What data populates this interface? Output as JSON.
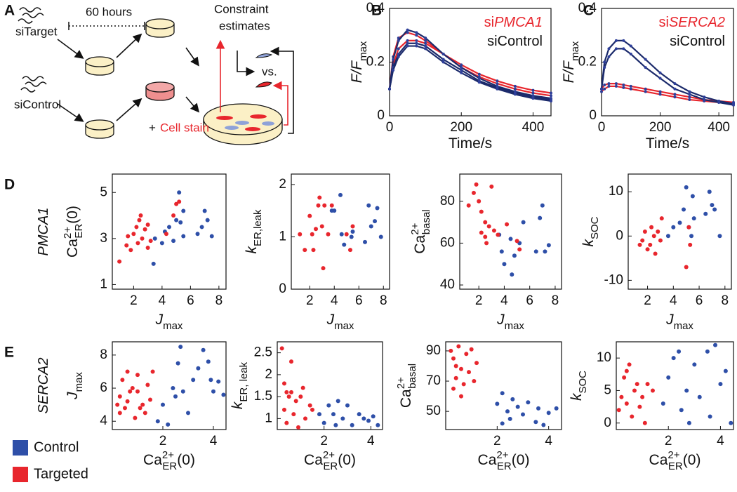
{
  "diagram": {
    "panel": "A",
    "target": "siTarget",
    "duration": "60 hours",
    "control": "siControl",
    "plus": "+",
    "stain": "Cell stain",
    "estimates": [
      "Constraint",
      "estimates"
    ],
    "versus": "vs."
  },
  "legend": [
    {
      "name": "Control",
      "color": "#2e4fa8"
    },
    {
      "name": "Targeted",
      "color": "#e8262d"
    }
  ],
  "chart_data": [
    {
      "type": "line",
      "panel": "B",
      "legend": [
        {
          "prefix": "si",
          "name": "PMCA1",
          "color": "#e8262d"
        },
        {
          "name": "siControl",
          "color": "#111111"
        }
      ],
      "xlabel": {
        "text": "Time/s"
      },
      "ylabel": {
        "text": "F/F",
        "sub": "max",
        "italic": true
      },
      "xlim": [
        0,
        450
      ],
      "xticks": [
        0,
        200,
        400
      ],
      "ylim": [
        0,
        0.4
      ],
      "yticks": [
        0,
        0.2,
        0.4
      ],
      "x": [
        0,
        10,
        25,
        50,
        75,
        100,
        150,
        200,
        250,
        300,
        350,
        400,
        450
      ],
      "series": [
        {
          "color": "#e8262d",
          "values": [
            0.1,
            0.22,
            0.29,
            0.31,
            0.3,
            0.28,
            0.23,
            0.18,
            0.145,
            0.12,
            0.1,
            0.085,
            0.075
          ]
        },
        {
          "color": "#e8262d",
          "values": [
            0.1,
            0.19,
            0.25,
            0.28,
            0.28,
            0.27,
            0.23,
            0.19,
            0.155,
            0.13,
            0.11,
            0.095,
            0.085
          ]
        },
        {
          "color": "#1b2a6b",
          "values": [
            0.1,
            0.21,
            0.28,
            0.32,
            0.31,
            0.29,
            0.23,
            0.18,
            0.14,
            0.11,
            0.09,
            0.075,
            0.065
          ]
        },
        {
          "color": "#1b2a6b",
          "values": [
            0.1,
            0.18,
            0.23,
            0.27,
            0.27,
            0.26,
            0.21,
            0.17,
            0.13,
            0.105,
            0.085,
            0.07,
            0.06
          ]
        },
        {
          "color": "#1b2a6b",
          "values": [
            0.1,
            0.17,
            0.22,
            0.26,
            0.26,
            0.25,
            0.2,
            0.16,
            0.125,
            0.1,
            0.08,
            0.065,
            0.055
          ]
        }
      ]
    },
    {
      "type": "line",
      "panel": "C",
      "legend": [
        {
          "prefix": "si",
          "name": "SERCA2",
          "color": "#e8262d"
        },
        {
          "name": "siControl",
          "color": "#111111"
        }
      ],
      "xlabel": {
        "text": "Time/s"
      },
      "ylabel": {
        "text": "F/F",
        "sub": "max",
        "italic": true
      },
      "xlim": [
        0,
        450
      ],
      "xticks": [
        0,
        200,
        400
      ],
      "ylim": [
        0,
        0.4
      ],
      "yticks": [
        0,
        0.2,
        0.4
      ],
      "x": [
        0,
        10,
        25,
        50,
        75,
        100,
        150,
        200,
        250,
        300,
        350,
        400,
        450
      ],
      "series": [
        {
          "color": "#e8262d",
          "values": [
            0.1,
            0.115,
            0.12,
            0.12,
            0.115,
            0.11,
            0.1,
            0.09,
            0.08,
            0.07,
            0.06,
            0.055,
            0.05
          ]
        },
        {
          "color": "#e8262d",
          "values": [
            0.09,
            0.1,
            0.11,
            0.11,
            0.105,
            0.1,
            0.09,
            0.08,
            0.07,
            0.06,
            0.055,
            0.05,
            0.045
          ]
        },
        {
          "color": "#1b2a6b",
          "values": [
            0.1,
            0.2,
            0.25,
            0.28,
            0.28,
            0.26,
            0.21,
            0.16,
            0.12,
            0.09,
            0.07,
            0.055,
            0.045
          ]
        },
        {
          "color": "#1b2a6b",
          "values": [
            0.1,
            0.18,
            0.22,
            0.25,
            0.25,
            0.23,
            0.18,
            0.14,
            0.1,
            0.08,
            0.06,
            0.05,
            0.04
          ]
        }
      ]
    },
    {
      "type": "scatter",
      "panel": "D",
      "row_label": "PMCA1",
      "xlabel": {
        "text": "J",
        "sub": "max",
        "italic": true
      },
      "ylabel": {
        "text": "Ca",
        "sup": "2+",
        "sub": "ER",
        "after": "(0)"
      },
      "xlim": [
        0.5,
        8.5
      ],
      "xticks": [
        2,
        4,
        6,
        8
      ],
      "ylim": [
        0.8,
        5.8
      ],
      "yticks": [
        1,
        3,
        5
      ],
      "series": [
        {
          "color": "#2e4fa8",
          "x": [
            3.4,
            3.5,
            4,
            4.2,
            4.5,
            4.8,
            5,
            5.2,
            5.5,
            5.5,
            6.5,
            6.8,
            7,
            7.2,
            7.5,
            5.3
          ],
          "values": [
            1.9,
            3,
            2.8,
            3.3,
            3.5,
            2.9,
            3.8,
            5,
            4.2,
            3.1,
            3.2,
            3.5,
            4.2,
            3.8,
            3.1,
            3.7
          ]
        },
        {
          "color": "#e8262d",
          "x": [
            1,
            1.5,
            1.6,
            1.8,
            2,
            2.2,
            2.3,
            2.4,
            2.5,
            2.6,
            2.8,
            3,
            3,
            3.2,
            4.3,
            4.8,
            5,
            5.2
          ],
          "values": [
            2,
            2.7,
            3.1,
            2.5,
            3.2,
            3.5,
            2.8,
            3.8,
            4,
            3,
            3.4,
            2.6,
            3.6,
            2.9,
            3.2,
            4,
            4.5,
            4.6
          ]
        }
      ]
    },
    {
      "type": "scatter",
      "xlabel": {
        "text": "J",
        "sub": "max",
        "italic": true
      },
      "ylabel": {
        "text": "k",
        "sub": "ER,leak",
        "italic": true
      },
      "xlim": [
        0.5,
        8.5
      ],
      "xticks": [
        2,
        4,
        6,
        8
      ],
      "ylim": [
        0,
        2.2
      ],
      "yticks": [
        0,
        1,
        2
      ],
      "series": [
        {
          "color": "#2e4fa8",
          "x": [
            3.8,
            4,
            4.5,
            4.6,
            4.8,
            5.4,
            5.5,
            6.8,
            7,
            7.3,
            7.5,
            7.8,
            6.5
          ],
          "values": [
            1.5,
            1.5,
            1.8,
            1.05,
            0.85,
            1,
            1.1,
            1.6,
            1.2,
            1.3,
            1.55,
            1,
            0.9
          ]
        },
        {
          "color": "#e8262d",
          "x": [
            1.2,
            1.6,
            2,
            2.2,
            2.3,
            2.5,
            2.7,
            2.8,
            3,
            3.1,
            3.2,
            3.5,
            3.8,
            5,
            5.3,
            5.5
          ],
          "values": [
            1.05,
            0.75,
            1.4,
            1.05,
            0.75,
            1.15,
            1.6,
            1.75,
            1.2,
            0.4,
            1.6,
            1.05,
            1.6,
            1.05,
            0.75,
            1.2
          ]
        }
      ]
    },
    {
      "type": "scatter",
      "xlabel": {
        "text": "J",
        "sub": "max",
        "italic": true
      },
      "ylabel": {
        "text": "Ca",
        "sup": "2+",
        "sub": "basal"
      },
      "xlim": [
        0.5,
        8.5
      ],
      "xticks": [
        2,
        4,
        6,
        8
      ],
      "ylim": [
        38,
        93
      ],
      "yticks": [
        40,
        60,
        80
      ],
      "series": [
        {
          "color": "#2e4fa8",
          "x": [
            3.6,
            3.8,
            4,
            4.5,
            4.6,
            4.8,
            5.2,
            5.5,
            6.5,
            6.8,
            7,
            7.2,
            7.5
          ],
          "values": [
            64,
            56,
            50,
            62,
            45,
            54,
            60,
            70,
            56,
            72,
            78,
            56,
            59
          ]
        },
        {
          "color": "#e8262d",
          "x": [
            1.2,
            1.6,
            1.8,
            2,
            2.2,
            2.5,
            2.5,
            2.6,
            3,
            2.8,
            3.2,
            3.5,
            4.2,
            5,
            5.2,
            2.2
          ],
          "values": [
            78,
            84,
            88,
            80,
            75,
            70,
            63,
            60,
            87,
            68,
            66,
            64,
            69,
            61,
            57,
            65
          ]
        }
      ]
    },
    {
      "type": "scatter",
      "xlabel": {
        "text": "J",
        "sub": "max",
        "italic": true
      },
      "ylabel": {
        "text": "k",
        "sub": "SOC",
        "italic": true
      },
      "xlim": [
        0.5,
        8.5
      ],
      "xticks": [
        2,
        4,
        6,
        8
      ],
      "ylim": [
        -12,
        14
      ],
      "yticks": [
        -10,
        0,
        10
      ],
      "series": [
        {
          "color": "#2e4fa8",
          "x": [
            3.6,
            4,
            4.5,
            4.8,
            5,
            5.2,
            5.5,
            5.6,
            6.5,
            6.8,
            7,
            7.2,
            7.6,
            5.4
          ],
          "values": [
            0,
            2,
            3,
            6,
            11,
            2,
            9,
            4,
            5,
            10,
            7,
            6,
            0,
            0
          ]
        },
        {
          "color": "#e8262d",
          "x": [
            1.4,
            1.6,
            1.8,
            2,
            2.2,
            2.3,
            2.5,
            2.6,
            2.8,
            3,
            3.1,
            5,
            5.2,
            5.3
          ],
          "values": [
            -2,
            -1,
            1,
            -3,
            -2,
            2,
            0,
            -4,
            1,
            -1,
            4,
            -7,
            2,
            -2
          ]
        }
      ]
    },
    {
      "type": "scatter",
      "panel": "E",
      "row_label": "SERCA2",
      "xlabel": {
        "text": "Ca",
        "sup": "2+",
        "sub": "ER",
        "after": "(0)"
      },
      "ylabel": {
        "text": "J",
        "sub": "max",
        "italic": true
      },
      "xlim": [
        0,
        4.5
      ],
      "xticks": [
        2,
        4
      ],
      "ylim": [
        3.5,
        8.8
      ],
      "yticks": [
        4,
        6,
        8
      ],
      "series": [
        {
          "color": "#2e4fa8",
          "x": [
            1.8,
            2,
            2.2,
            2.4,
            2.6,
            2.7,
            2.8,
            3,
            3.2,
            3.4,
            3.6,
            3.8,
            3.9,
            4,
            4.2,
            4.4,
            2.5
          ],
          "values": [
            4,
            5,
            3.8,
            6,
            7.5,
            8.5,
            5.8,
            4.5,
            6.5,
            7.2,
            8.3,
            7.6,
            6.5,
            5.8,
            6.4,
            5.6,
            5.5
          ]
        },
        {
          "color": "#e8262d",
          "x": [
            0.2,
            0.3,
            0.3,
            0.4,
            0.5,
            0.6,
            0.6,
            0.8,
            0.9,
            1,
            1,
            1.2,
            1.3,
            1.4,
            1.5,
            1.6,
            0.7,
            1.1
          ],
          "values": [
            5,
            4.5,
            5.5,
            6.5,
            4.8,
            5.2,
            7,
            6,
            4.2,
            5.8,
            6.8,
            5,
            4.5,
            6.2,
            5.3,
            7,
            5.8,
            4.8
          ]
        }
      ]
    },
    {
      "type": "scatter",
      "xlabel": {
        "text": "Ca",
        "sup": "2+",
        "sub": "ER",
        "after": "(0)"
      },
      "ylabel": {
        "text": "k",
        "sub": "ER, leak",
        "italic": true
      },
      "xlim": [
        0,
        4.5
      ],
      "xticks": [
        2,
        4
      ],
      "ylim": [
        0.75,
        2.75
      ],
      "yticks": [
        1,
        1.5,
        2,
        2.5
      ],
      "series": [
        {
          "color": "#2e4fa8",
          "x": [
            1.8,
            2,
            2.2,
            2.4,
            2.6,
            2.8,
            3,
            3.2,
            3.5,
            3.7,
            3.9,
            4.1,
            4.3,
            2.5
          ],
          "values": [
            1.1,
            0.9,
            1.3,
            1.1,
            1.4,
            1,
            1.3,
            0.85,
            1.1,
            1,
            0.95,
            1.05,
            0.85,
            0.85
          ]
        },
        {
          "color": "#e8262d",
          "x": [
            0.2,
            0.3,
            0.3,
            0.4,
            0.5,
            0.6,
            0.6,
            0.7,
            0.8,
            0.9,
            1,
            1.1,
            1.2,
            1.4,
            1.5,
            0.4
          ],
          "values": [
            2.6,
            1.8,
            1.2,
            0.9,
            1.5,
            2.3,
            1.6,
            1.1,
            1.4,
            0.8,
            1.5,
            1.7,
            1,
            1.3,
            1.2,
            1.6
          ]
        }
      ]
    },
    {
      "type": "scatter",
      "xlabel": {
        "text": "Ca",
        "sup": "2+",
        "sub": "ER",
        "after": "(0)"
      },
      "ylabel": {
        "text": "Ca",
        "sup": "2+",
        "sub": "basal"
      },
      "xlim": [
        0,
        4.5
      ],
      "xticks": [
        2,
        4
      ],
      "ylim": [
        38,
        96
      ],
      "yticks": [
        50,
        70,
        90
      ],
      "series": [
        {
          "color": "#2e4fa8",
          "x": [
            2,
            2.2,
            2.4,
            2.5,
            2.6,
            2.8,
            3,
            3.2,
            3.5,
            3.6,
            3.8,
            4,
            4.3,
            2.2
          ],
          "values": [
            55,
            62,
            50,
            45,
            58,
            53,
            48,
            56,
            43,
            52,
            41,
            49,
            52,
            42
          ]
        },
        {
          "color": "#e8262d",
          "x": [
            0.2,
            0.3,
            0.4,
            0.4,
            0.5,
            0.6,
            0.7,
            0.8,
            0.9,
            1,
            1.1,
            1.2,
            0.3,
            0.6
          ],
          "values": [
            90,
            85,
            80,
            72,
            93,
            78,
            68,
            88,
            76,
            91,
            70,
            82,
            65,
            60
          ]
        }
      ]
    },
    {
      "type": "scatter",
      "xlabel": {
        "text": "Ca",
        "sup": "2+",
        "sub": "ER",
        "after": "(0)"
      },
      "ylabel": {
        "text": "k",
        "sub": "SOC",
        "italic": true
      },
      "xlim": [
        0,
        4.5
      ],
      "xticks": [
        2,
        4
      ],
      "ylim": [
        -1,
        12.5
      ],
      "yticks": [
        0,
        5,
        10
      ],
      "series": [
        {
          "color": "#2e4fa8",
          "x": [
            1.8,
            2,
            2.2,
            2.4,
            2.5,
            2.7,
            2.8,
            3,
            3.2,
            3.5,
            3.6,
            3.8,
            4,
            4.2,
            4.4
          ],
          "values": [
            3,
            7,
            10,
            11,
            2,
            5,
            0,
            9,
            4,
            11,
            1,
            12,
            6,
            8,
            0
          ]
        },
        {
          "color": "#e8262d",
          "x": [
            0.1,
            0.2,
            0.3,
            0.4,
            0.5,
            0.6,
            0.7,
            0.8,
            0.9,
            1,
            1.1,
            1.2,
            1.4,
            0.4
          ],
          "values": [
            2,
            4,
            7,
            3,
            9,
            1,
            5,
            6,
            2.5,
            4,
            0,
            6,
            5,
            8
          ]
        }
      ]
    }
  ]
}
